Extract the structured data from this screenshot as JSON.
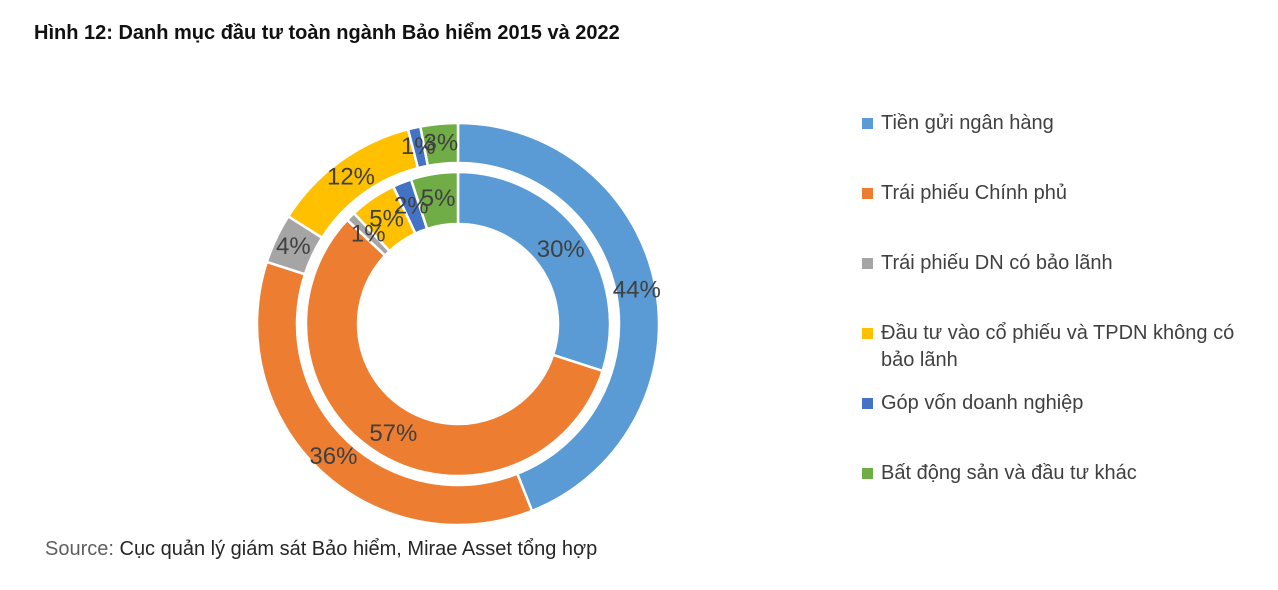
{
  "title": "Hình 12: Danh mục đầu tư toàn ngành Bảo hiểm 2015 và 2022",
  "source": {
    "prefix": "Source:",
    "text": " Cục quản lý giám sát Bảo hiểm, Mirae Asset tổng hợp"
  },
  "chart_data": {
    "type": "donut",
    "title": "Hình 12: Danh mục đầu tư toàn ngành Bảo hiểm 2015 và 2022",
    "categories": [
      "Tiền gửi ngân hàng",
      "Trái phiếu Chính phủ",
      "Trái phiếu DN có bảo lãnh",
      "Đầu tư vào cổ phiếu và TPDN không có bảo lãnh",
      "Góp vốn doanh nghiệp",
      "Bất động sản và đầu tư khác"
    ],
    "colors": [
      "#5B9BD5",
      "#ED7D31",
      "#A5A5A5",
      "#FFC000",
      "#4472C4",
      "#70AD47"
    ],
    "series": [
      {
        "name": "2015",
        "ring": "inner",
        "values": [
          30,
          57,
          1,
          5,
          2,
          5
        ]
      },
      {
        "name": "2022",
        "ring": "outer",
        "values": [
          44,
          36,
          4,
          12,
          1,
          3
        ]
      }
    ],
    "label_format": "{value}%",
    "label_color": "#404040",
    "start_angle_deg": 0,
    "direction": "clockwise",
    "legend_position": "right",
    "grid": false
  }
}
